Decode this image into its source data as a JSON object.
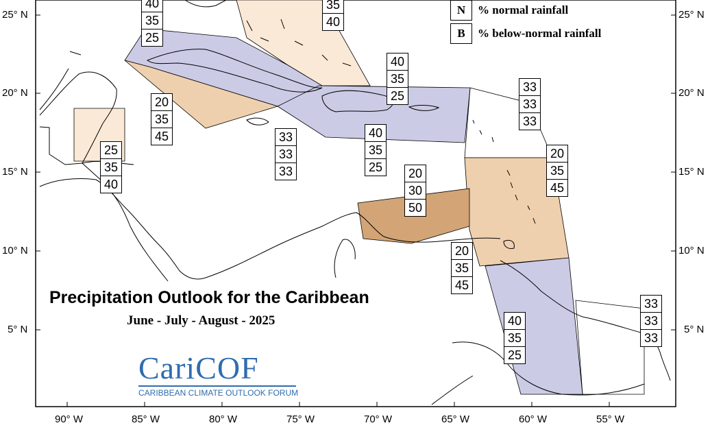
{
  "title": "Precipitation Outlook for the Caribbean",
  "subtitle": "June - July - August - 2025",
  "logo": {
    "main": "CariCOF",
    "tagline": "CARIBBEAN CLIMATE OUTLOOK FORUM"
  },
  "legend": [
    {
      "key": "N",
      "label": "% normal rainfall"
    },
    {
      "key": "B",
      "label": "% below-normal rainfall"
    }
  ],
  "lat_labels": [
    "25° N",
    "20° N",
    "15° N",
    "10° N",
    "5° N"
  ],
  "lon_labels": [
    "90° W",
    "85° W",
    "80° W",
    "75° W",
    "70° W",
    "65° W",
    "60° W",
    "55° W"
  ],
  "colors": {
    "above_40": "#cccbe6",
    "below_40": "#fbe9d7",
    "below_45": "#efd0ae",
    "below_50": "#d2a476",
    "coast": "#000000"
  },
  "forecast_boxes": [
    {
      "id": "bahamas-west",
      "values": [
        "40",
        "35",
        "25"
      ]
    },
    {
      "id": "bahamas-east",
      "values": [
        "35",
        "40"
      ]
    },
    {
      "id": "hispaniola",
      "values": [
        "40",
        "35",
        "25"
      ]
    },
    {
      "id": "jamaica-south",
      "values": [
        "20",
        "35",
        "45"
      ]
    },
    {
      "id": "belize",
      "values": [
        "25",
        "35",
        "40"
      ]
    },
    {
      "id": "central-caribbean",
      "values": [
        "33",
        "33",
        "33"
      ]
    },
    {
      "id": "puerto-rico-south",
      "values": [
        "40",
        "35",
        "25"
      ]
    },
    {
      "id": "leeward-north",
      "values": [
        "33",
        "33",
        "33"
      ]
    },
    {
      "id": "windward",
      "values": [
        "20",
        "35",
        "45"
      ]
    },
    {
      "id": "abc-islands",
      "values": [
        "20",
        "30",
        "50"
      ]
    },
    {
      "id": "trinidad",
      "values": [
        "20",
        "35",
        "45"
      ]
    },
    {
      "id": "guyana",
      "values": [
        "40",
        "35",
        "25"
      ]
    },
    {
      "id": "french-guiana",
      "values": [
        "33",
        "33",
        "33"
      ]
    }
  ]
}
